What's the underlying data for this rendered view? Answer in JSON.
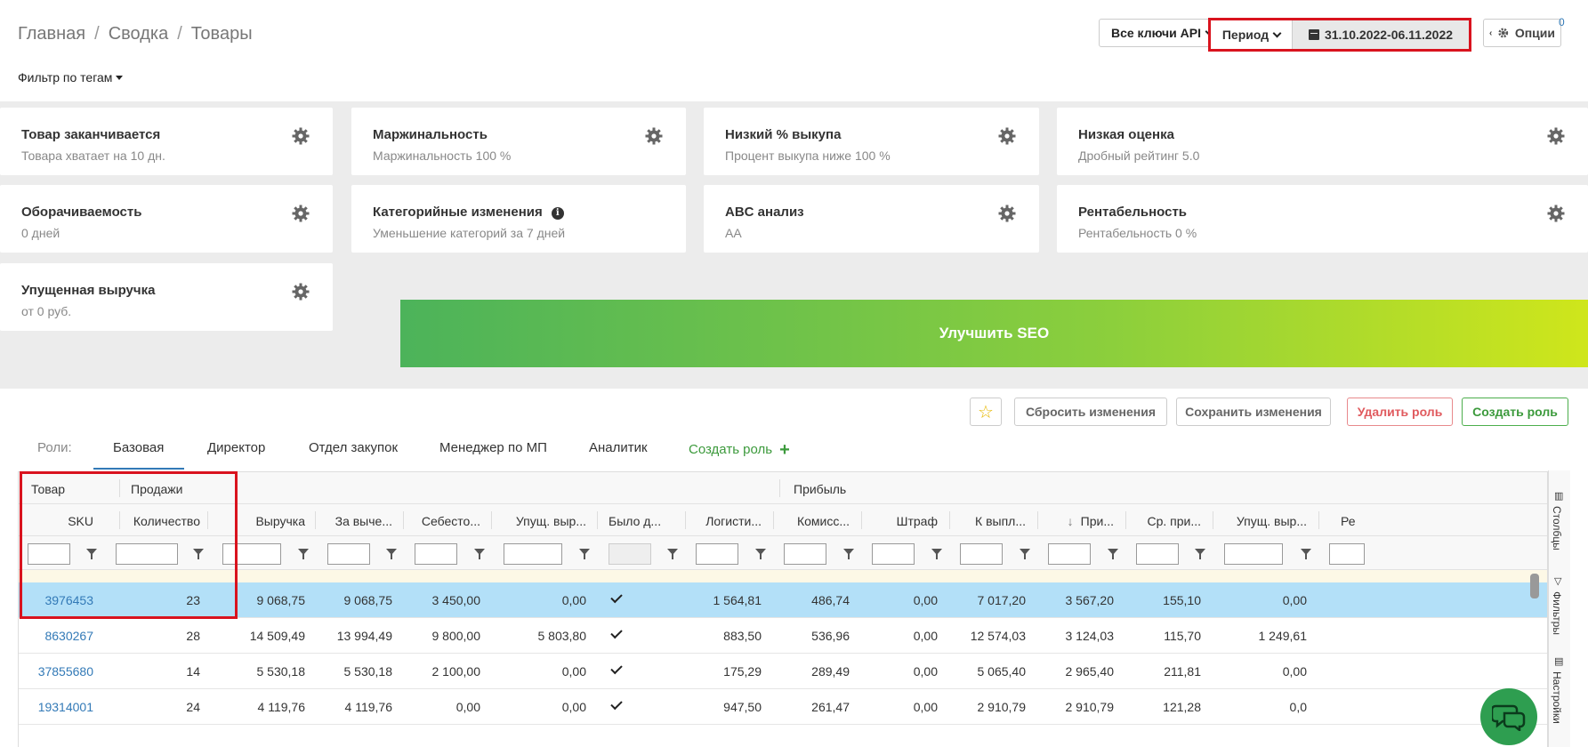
{
  "breadcrumb": [
    "Главная",
    "Сводка",
    "Товары"
  ],
  "tag_filter": "Фильтр по тегам",
  "header": {
    "api_keys": "Все ключи API",
    "period": "Период",
    "date_range": "31.10.2022-06.11.2022",
    "options": "Опции",
    "options_badge": "0"
  },
  "cards": [
    {
      "title": "Товар заканчивается",
      "sub": "Товара хватает на 10 дн."
    },
    {
      "title": "Маржинальность",
      "sub": "Маржинальность 100 %"
    },
    {
      "title": "Низкий % выкупа",
      "sub": "Процент выкупа ниже 100 %"
    },
    {
      "title": "Низкая оценка",
      "sub": "Дробный рейтинг 5.0"
    },
    {
      "title": "Оборачиваемость",
      "sub": "0 дней"
    },
    {
      "title": "Категорийные изменения",
      "sub": "Уменьшение категорий за 7 дней"
    },
    {
      "title": "ABC анализ",
      "sub": "AA"
    },
    {
      "title": "Рентабельность",
      "sub": "Рентабельность 0 %"
    },
    {
      "title": "Упущенная выручка",
      "sub": "от 0 руб."
    }
  ],
  "seo_banner": "Улучшить SEO",
  "toolbar": {
    "reset": "Сбросить изменения",
    "save": "Сохранить изменения",
    "delete_role": "Удалить роль",
    "create_role": "Создать роль"
  },
  "roles": {
    "label": "Роли:",
    "tabs": [
      "Базовая",
      "Директор",
      "Отдел закупок",
      "Менеджер по МП",
      "Аналитик"
    ],
    "create": "Создать роль",
    "active": "Базовая"
  },
  "grid": {
    "groups": [
      "Товар",
      "Продажи",
      "Прибыль"
    ],
    "columns": [
      "SKU",
      "Количество",
      "Выручка",
      "За выче...",
      "Себесто...",
      "Упущ. выр...",
      "Было д...",
      "Логисти...",
      "Комисс...",
      "Штраф",
      "К выпл...",
      "При...",
      "Ср. при...",
      "Упущ. выр...",
      "Ре"
    ],
    "sort_column": "При...",
    "rows": [
      {
        "sku": "3976453",
        "qty": "23",
        "revenue": "9 068,75",
        "net": "9 068,75",
        "cost": "3 450,00",
        "lost": "0,00",
        "was": true,
        "logistics": "1 564,81",
        "commission": "486,74",
        "fine": "0,00",
        "payout": "7 017,20",
        "profit": "3 567,20",
        "avg": "155,10",
        "lost2": "0,00",
        "selected": true
      },
      {
        "sku": "8630267",
        "qty": "28",
        "revenue": "14 509,49",
        "net": "13 994,49",
        "cost": "9 800,00",
        "lost": "5 803,80",
        "was": true,
        "logistics": "883,50",
        "commission": "536,96",
        "fine": "0,00",
        "payout": "12 574,03",
        "profit": "3 124,03",
        "avg": "115,70",
        "lost2": "1 249,61",
        "selected": false
      },
      {
        "sku": "37855680",
        "qty": "14",
        "revenue": "5 530,18",
        "net": "5 530,18",
        "cost": "2 100,00",
        "lost": "0,00",
        "was": true,
        "logistics": "175,29",
        "commission": "289,49",
        "fine": "0,00",
        "payout": "5 065,40",
        "profit": "2 965,40",
        "avg": "211,81",
        "lost2": "0,00",
        "selected": false
      },
      {
        "sku": "19314001",
        "qty": "24",
        "revenue": "4 119,76",
        "net": "4 119,76",
        "cost": "0,00",
        "lost": "0,00",
        "was": true,
        "logistics": "947,50",
        "commission": "261,47",
        "fine": "0,00",
        "payout": "2 910,79",
        "profit": "2 910,79",
        "avg": "121,28",
        "lost2": "0,0",
        "selected": false
      }
    ]
  },
  "sidebar": {
    "columns": "Столбцы",
    "filters": "Фильтры",
    "settings": "Настройки"
  },
  "icons": {
    "gear": "gear-icon",
    "info": "info-icon",
    "star": "star-icon",
    "calendar": "calendar-icon",
    "chat": "chat-icon",
    "filter": "filter-icon",
    "sort": "sort-down-icon"
  },
  "colors": {
    "accent": "#337ab7",
    "highlight": "#d9131e",
    "selected_row": "#b3e0f8",
    "green": "#3c9a3c",
    "red": "#e05a5e"
  }
}
